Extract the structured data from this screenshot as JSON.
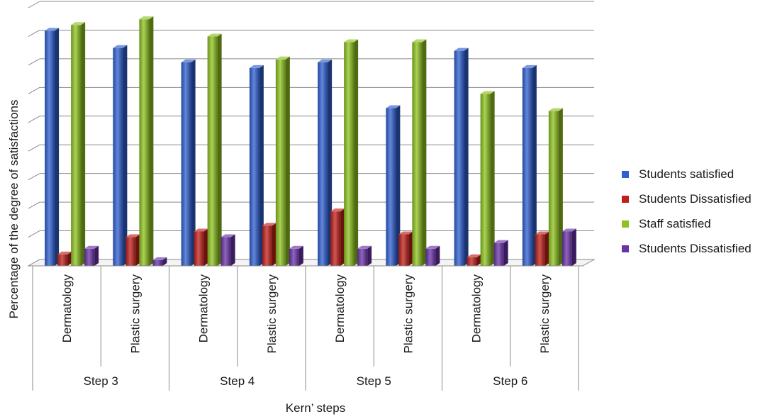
{
  "chart_data": {
    "type": "bar",
    "title": "",
    "xlabel": "Kern’ steps",
    "ylabel": "Percentage of the degree of satisfactions",
    "ylim": [
      0,
      90
    ],
    "grid": true,
    "legend_position": "right",
    "groups": [
      "Step 3",
      "Step 4",
      "Step 5",
      "Step 6"
    ],
    "categories": [
      "Dermatology",
      "Plastic surgery",
      "Dermatology",
      "Plastic surgery",
      "Dermatology",
      "Plastic surgery",
      "Dermatology",
      "Plastic surgery"
    ],
    "series": [
      {
        "name": "Students satisfied",
        "color": "#2f5fd0",
        "values": [
          82,
          76,
          71,
          69,
          71,
          55,
          75,
          69
        ]
      },
      {
        "name": "Students Dissatisfied",
        "color": "#c0201a",
        "values": [
          4,
          10,
          12,
          14,
          19,
          11,
          3,
          11
        ]
      },
      {
        "name": "Staff satisfied",
        "color": "#8dc21f",
        "values": [
          84,
          86,
          80,
          72,
          78,
          78,
          60,
          54
        ]
      },
      {
        "name": "Students Dissatisfied",
        "color": "#6a32a8",
        "values": [
          6,
          2,
          10,
          6,
          6,
          6,
          8,
          12
        ]
      }
    ]
  }
}
